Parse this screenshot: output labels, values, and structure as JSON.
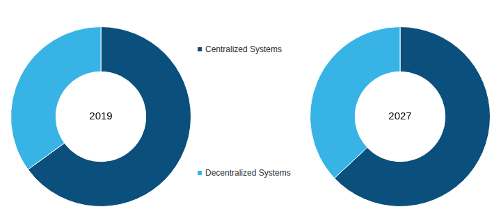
{
  "chart_data": {
    "type": "doughnut",
    "categories": [
      "Centralized Systems",
      "Decentralized Systems"
    ],
    "colors": [
      "#0b4f7c",
      "#37b3e5"
    ],
    "series": [
      {
        "name": "2019",
        "values": [
          65,
          35
        ]
      },
      {
        "name": "2027",
        "values": [
          63,
          37
        ]
      }
    ],
    "legend": "center"
  }
}
